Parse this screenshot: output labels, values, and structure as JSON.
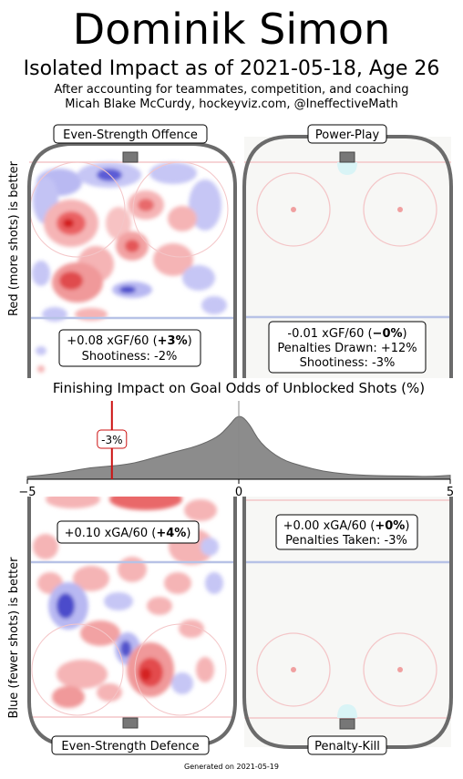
{
  "header": {
    "player_name": "Dominik Simon",
    "subtitle": "Isolated Impact as of 2021-05-18, Age 26",
    "description_line1": "After accounting for teammates, competition, and coaching",
    "description_line2": "Micah Blake McCurdy, hockeyviz.com, @IneffectiveMath"
  },
  "axis_labels": {
    "top": "Red (more shots) is better",
    "bottom": "Blue (fewer shots) is better"
  },
  "panels": {
    "es_offence": {
      "label": "Even-Strength Offence",
      "line1_prefix": "+0.08 xGF/60 (",
      "line1_bold": "+3%",
      "line1_suffix": ")",
      "line2": "Shootiness: -2%"
    },
    "power_play": {
      "label": "Power-Play",
      "line1_prefix": "-0.01 xGF/60 (",
      "line1_bold": "−0%",
      "line1_suffix": ")",
      "line2": "Penalties Drawn: +12%",
      "line3": "Shootiness: -3%"
    },
    "es_defence": {
      "label": "Even-Strength Defence",
      "line1_prefix": "+0.10 xGA/60 (",
      "line1_bold": "+4%",
      "line1_suffix": ")"
    },
    "penalty_kill": {
      "label": "Penalty-Kill",
      "line1_prefix": "+0.00 xGA/60 (",
      "line1_bold": "+0%",
      "line1_suffix": ")",
      "line2": "Penalties Taken: -3%"
    }
  },
  "chart_data": {
    "type": "area",
    "title": "Finishing Impact on Goal Odds of Unblocked Shots (%)",
    "xlim": [
      -5,
      5
    ],
    "x_ticks": [
      "−5",
      "0",
      "5"
    ],
    "player_marker": {
      "value": -3,
      "label": "-3%"
    },
    "x": [
      -5,
      -4.5,
      -4,
      -3.5,
      -3,
      -2.5,
      -2,
      -1.5,
      -1,
      -0.5,
      -0.25,
      0,
      0.25,
      0.5,
      1,
      1.5,
      2,
      2.5,
      3,
      3.5,
      4,
      4.5,
      5
    ],
    "density": [
      0.04,
      0.07,
      0.12,
      0.18,
      0.2,
      0.24,
      0.33,
      0.42,
      0.5,
      0.64,
      0.8,
      1.0,
      0.85,
      0.55,
      0.3,
      0.2,
      0.12,
      0.08,
      0.06,
      0.05,
      0.05,
      0.04,
      0.06
    ],
    "fill_color": "#8c8c8c",
    "marker_color": "#cc1111"
  },
  "colors": {
    "rink_border": "#6b6b6b",
    "red_line": "#f4c6c8",
    "blue_line": "#b7c2e6",
    "ice": "#f7f7f5",
    "heat_red": "#e8383a",
    "heat_blue": "#4a49c9"
  },
  "footer": "Generated on 2021-05-19"
}
